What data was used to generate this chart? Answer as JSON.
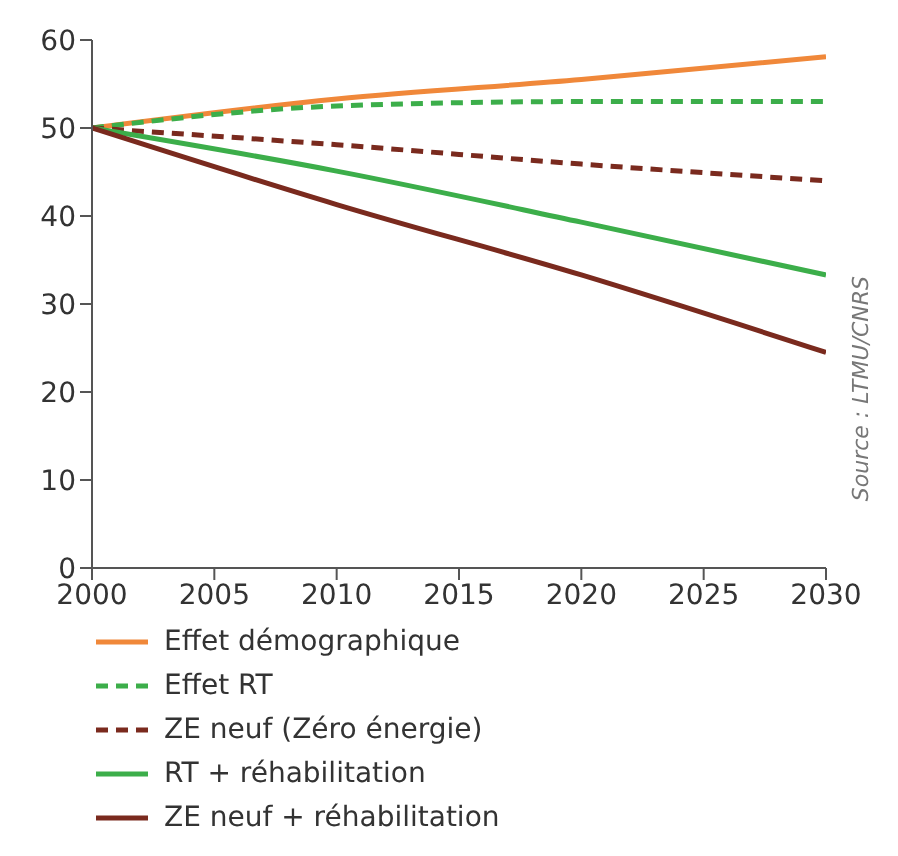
{
  "chart_data": {
    "type": "line",
    "x": [
      2000,
      2010,
      2020,
      2030
    ],
    "series": [
      {
        "name": "Effet démographique",
        "color": "#f0883a",
        "values": [
          50,
          53.3,
          55.5,
          58.1
        ]
      },
      {
        "name": "Effet RT",
        "color": "#3cae4a",
        "values": [
          50,
          52.5,
          53,
          53
        ],
        "line_style": "dashed"
      },
      {
        "name": "ZE neuf (Zéro énergie)",
        "color": "#7a2a1e",
        "values": [
          50,
          48.1,
          45.9,
          44
        ],
        "line_style": "dashed"
      },
      {
        "name": "RT + réhabilitation",
        "color": "#3cae4a",
        "values": [
          50,
          45.1,
          39.3,
          33.3
        ]
      },
      {
        "name": "ZE neuf + réhabilitation",
        "color": "#7a2a1e",
        "values": [
          50,
          41.3,
          33.3,
          24.5
        ]
      }
    ],
    "xlim": [
      2000,
      2030
    ],
    "xticks": [
      2000,
      2005,
      2010,
      2015,
      2020,
      2025,
      2030
    ],
    "ylim": [
      0,
      60
    ],
    "yticks": [
      0,
      10,
      20,
      30,
      40,
      50,
      60
    ],
    "grid": false,
    "legend": "bottom",
    "marker": "none",
    "line_style": "solid",
    "annotations": [
      "Source : LTMU/CNRS"
    ]
  }
}
